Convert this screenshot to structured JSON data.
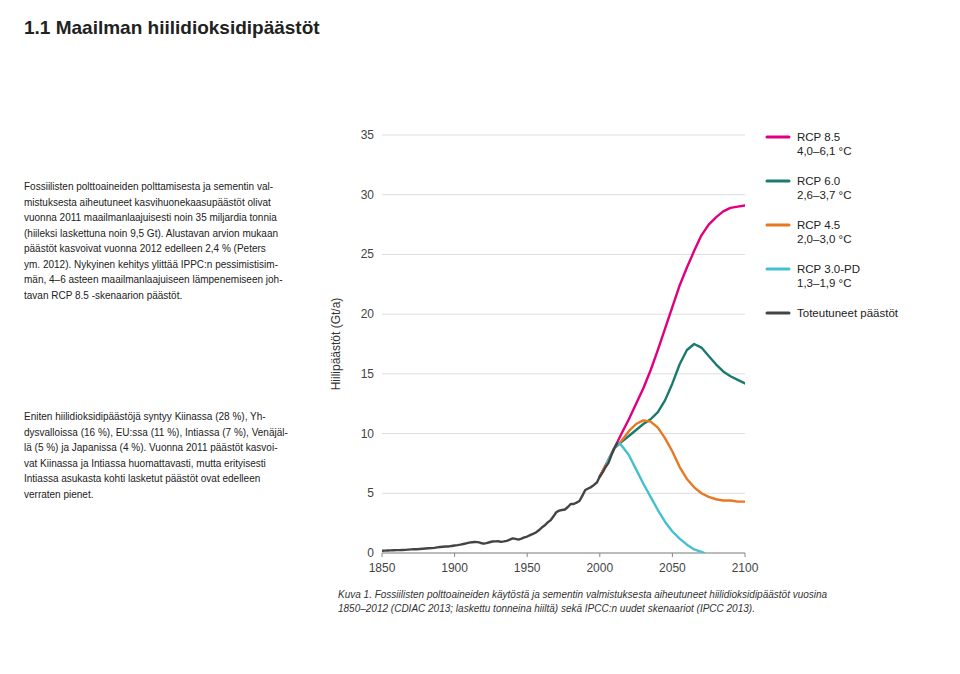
{
  "chart_data": {
    "type": "line",
    "title": "1.1   Maailman hiilidioksidipäästöt",
    "y_label": "Hiilipäästöt (Gt/a)",
    "annotations": [
      "Fossiilisten polttoaineiden polttamisesta ja sementin val-\nmistuksesta aiheutuneet kasvihuonekaasupäästöt olivat\nvuonna 2011 maailmanlaajuisesti noin 35 miljardia tonnia\n(hiileksi laskettuna noin 9,5 Gt). Alustavan arvion mukaan\npäästöt kasvoivat vuonna 2012 edelleen 2,4 % (Peters\nym. 2012). Nykyinen kehitys ylittää IPPC:n pessimistisim-\nmän, 4–6 asteen maailmanlaajuiseen lämpenemiseen joh-\ntavan RCP 8.5 -skenaarion päästöt.",
      "Eniten hiilidioksidipäästöjä syntyy Kiinassa (28 %), Yh-\ndysvalloissa (16 %), EU:ssa (11 %), Intiassa (7 %), Venäjäl-\nlä (5 %) ja Japanissa (4 %). Vuonna 2011 päästöt kasvoi-\nvat Kiinassa ja Intiassa huomattavasti, mutta erityisesti\nIntiassa asukasta kohti lasketut päästöt ovat edelleen\nverraten pienet."
    ],
    "caption": "Kuva 1. Fossiilisten polttoaineiden käytöstä ja sementin valmistuksesta aiheutuneet hiilidioksidipäästöt vuosina\n1850–2012 (CDIAC 2013; laskettu tonneina hiiltä) sekä IPCC:n uudet skenaariot (IPCC 2013).",
    "xlim": [
      1850,
      2100
    ],
    "ylim": [
      0,
      35
    ],
    "xticks": [
      1850,
      1900,
      1950,
      2000,
      2050,
      2100
    ],
    "yticks": [
      0,
      5,
      10,
      15,
      20,
      25,
      30,
      35
    ],
    "grid": true,
    "legend": "right",
    "series": [
      {
        "name": "RCP 8.5\n4,0–6,1 °C",
        "color": "#e0007f",
        "x": [
          2000,
          2005,
          2010,
          2015,
          2020,
          2025,
          2030,
          2035,
          2040,
          2045,
          2050,
          2055,
          2060,
          2065,
          2070,
          2075,
          2080,
          2085,
          2090,
          2095,
          2100
        ],
        "values": [
          6.41,
          7.55,
          8.77,
          10.0,
          11.2,
          12.5,
          13.8,
          15.3,
          17.0,
          18.8,
          20.6,
          22.4,
          23.9,
          25.3,
          26.6,
          27.5,
          28.1,
          28.6,
          28.9,
          29.0,
          29.1
        ]
      },
      {
        "name": "RCP 6.0\n2,6–3,7 °C",
        "color": "#1a7a6e",
        "x": [
          2000,
          2005,
          2010,
          2015,
          2020,
          2025,
          2030,
          2035,
          2040,
          2045,
          2050,
          2055,
          2060,
          2065,
          2070,
          2075,
          2080,
          2085,
          2090,
          2095,
          2100
        ],
        "values": [
          6.41,
          7.55,
          8.77,
          9.3,
          9.8,
          10.3,
          10.8,
          11.2,
          11.8,
          12.8,
          14.2,
          15.8,
          17.0,
          17.5,
          17.2,
          16.5,
          15.8,
          15.2,
          14.8,
          14.5,
          14.2
        ]
      },
      {
        "name": "RCP 4.5\n2,0–3,0 °C",
        "color": "#e87722",
        "x": [
          2000,
          2005,
          2010,
          2015,
          2020,
          2025,
          2030,
          2035,
          2040,
          2045,
          2050,
          2055,
          2060,
          2065,
          2070,
          2075,
          2080,
          2085,
          2090,
          2095,
          2100
        ],
        "values": [
          6.41,
          7.55,
          8.77,
          9.4,
          10.2,
          10.8,
          11.1,
          11.0,
          10.5,
          9.6,
          8.5,
          7.2,
          6.2,
          5.5,
          5.0,
          4.7,
          4.5,
          4.4,
          4.4,
          4.3,
          4.3
        ]
      },
      {
        "name": "RCP 3.0-PD\n1,3–1,9 °C",
        "color": "#45c0d0",
        "x": [
          2005,
          2010,
          2013,
          2015,
          2020,
          2025,
          2030,
          2035,
          2040,
          2045,
          2050,
          2055,
          2060,
          2065,
          2070,
          2072
        ],
        "values": [
          7.55,
          8.77,
          9.2,
          9.0,
          8.2,
          7.0,
          5.8,
          4.7,
          3.6,
          2.6,
          1.8,
          1.2,
          0.7,
          0.3,
          0.1,
          0.0
        ]
      },
      {
        "name": "Toteutuneet päästöt",
        "color": "#444444",
        "x": [
          1850,
          1852,
          1854,
          1856,
          1858,
          1860,
          1862,
          1864,
          1866,
          1868,
          1870,
          1872,
          1874,
          1876,
          1878,
          1880,
          1882,
          1884,
          1886,
          1888,
          1890,
          1892,
          1894,
          1896,
          1898,
          1900,
          1902,
          1904,
          1906,
          1908,
          1910,
          1912,
          1914,
          1916,
          1918,
          1920,
          1922,
          1924,
          1926,
          1928,
          1930,
          1932,
          1934,
          1936,
          1938,
          1940,
          1942,
          1944,
          1946,
          1948,
          1950,
          1952,
          1954,
          1956,
          1958,
          1960,
          1962,
          1964,
          1966,
          1968,
          1970,
          1972,
          1974,
          1976,
          1978,
          1980,
          1982,
          1984,
          1986,
          1988,
          1990,
          1992,
          1994,
          1996,
          1998,
          2000,
          2002,
          2004,
          2006,
          2008,
          2010,
          2012
        ],
        "values": [
          0.19,
          0.2,
          0.21,
          0.22,
          0.23,
          0.24,
          0.24,
          0.25,
          0.26,
          0.28,
          0.3,
          0.31,
          0.32,
          0.34,
          0.36,
          0.38,
          0.4,
          0.41,
          0.43,
          0.47,
          0.5,
          0.52,
          0.54,
          0.55,
          0.59,
          0.63,
          0.66,
          0.7,
          0.75,
          0.81,
          0.87,
          0.9,
          0.92,
          0.91,
          0.84,
          0.78,
          0.83,
          0.9,
          0.96,
          0.97,
          0.98,
          0.93,
          0.97,
          1.02,
          1.12,
          1.22,
          1.18,
          1.12,
          1.2,
          1.3,
          1.38,
          1.5,
          1.6,
          1.72,
          1.9,
          2.13,
          2.3,
          2.55,
          2.73,
          3.05,
          3.41,
          3.55,
          3.6,
          3.64,
          3.85,
          4.1,
          4.1,
          4.22,
          4.35,
          4.8,
          5.27,
          5.4,
          5.52,
          5.7,
          5.9,
          6.41,
          6.75,
          7.2,
          7.55,
          8.2,
          8.77,
          9.2
        ]
      }
    ]
  }
}
